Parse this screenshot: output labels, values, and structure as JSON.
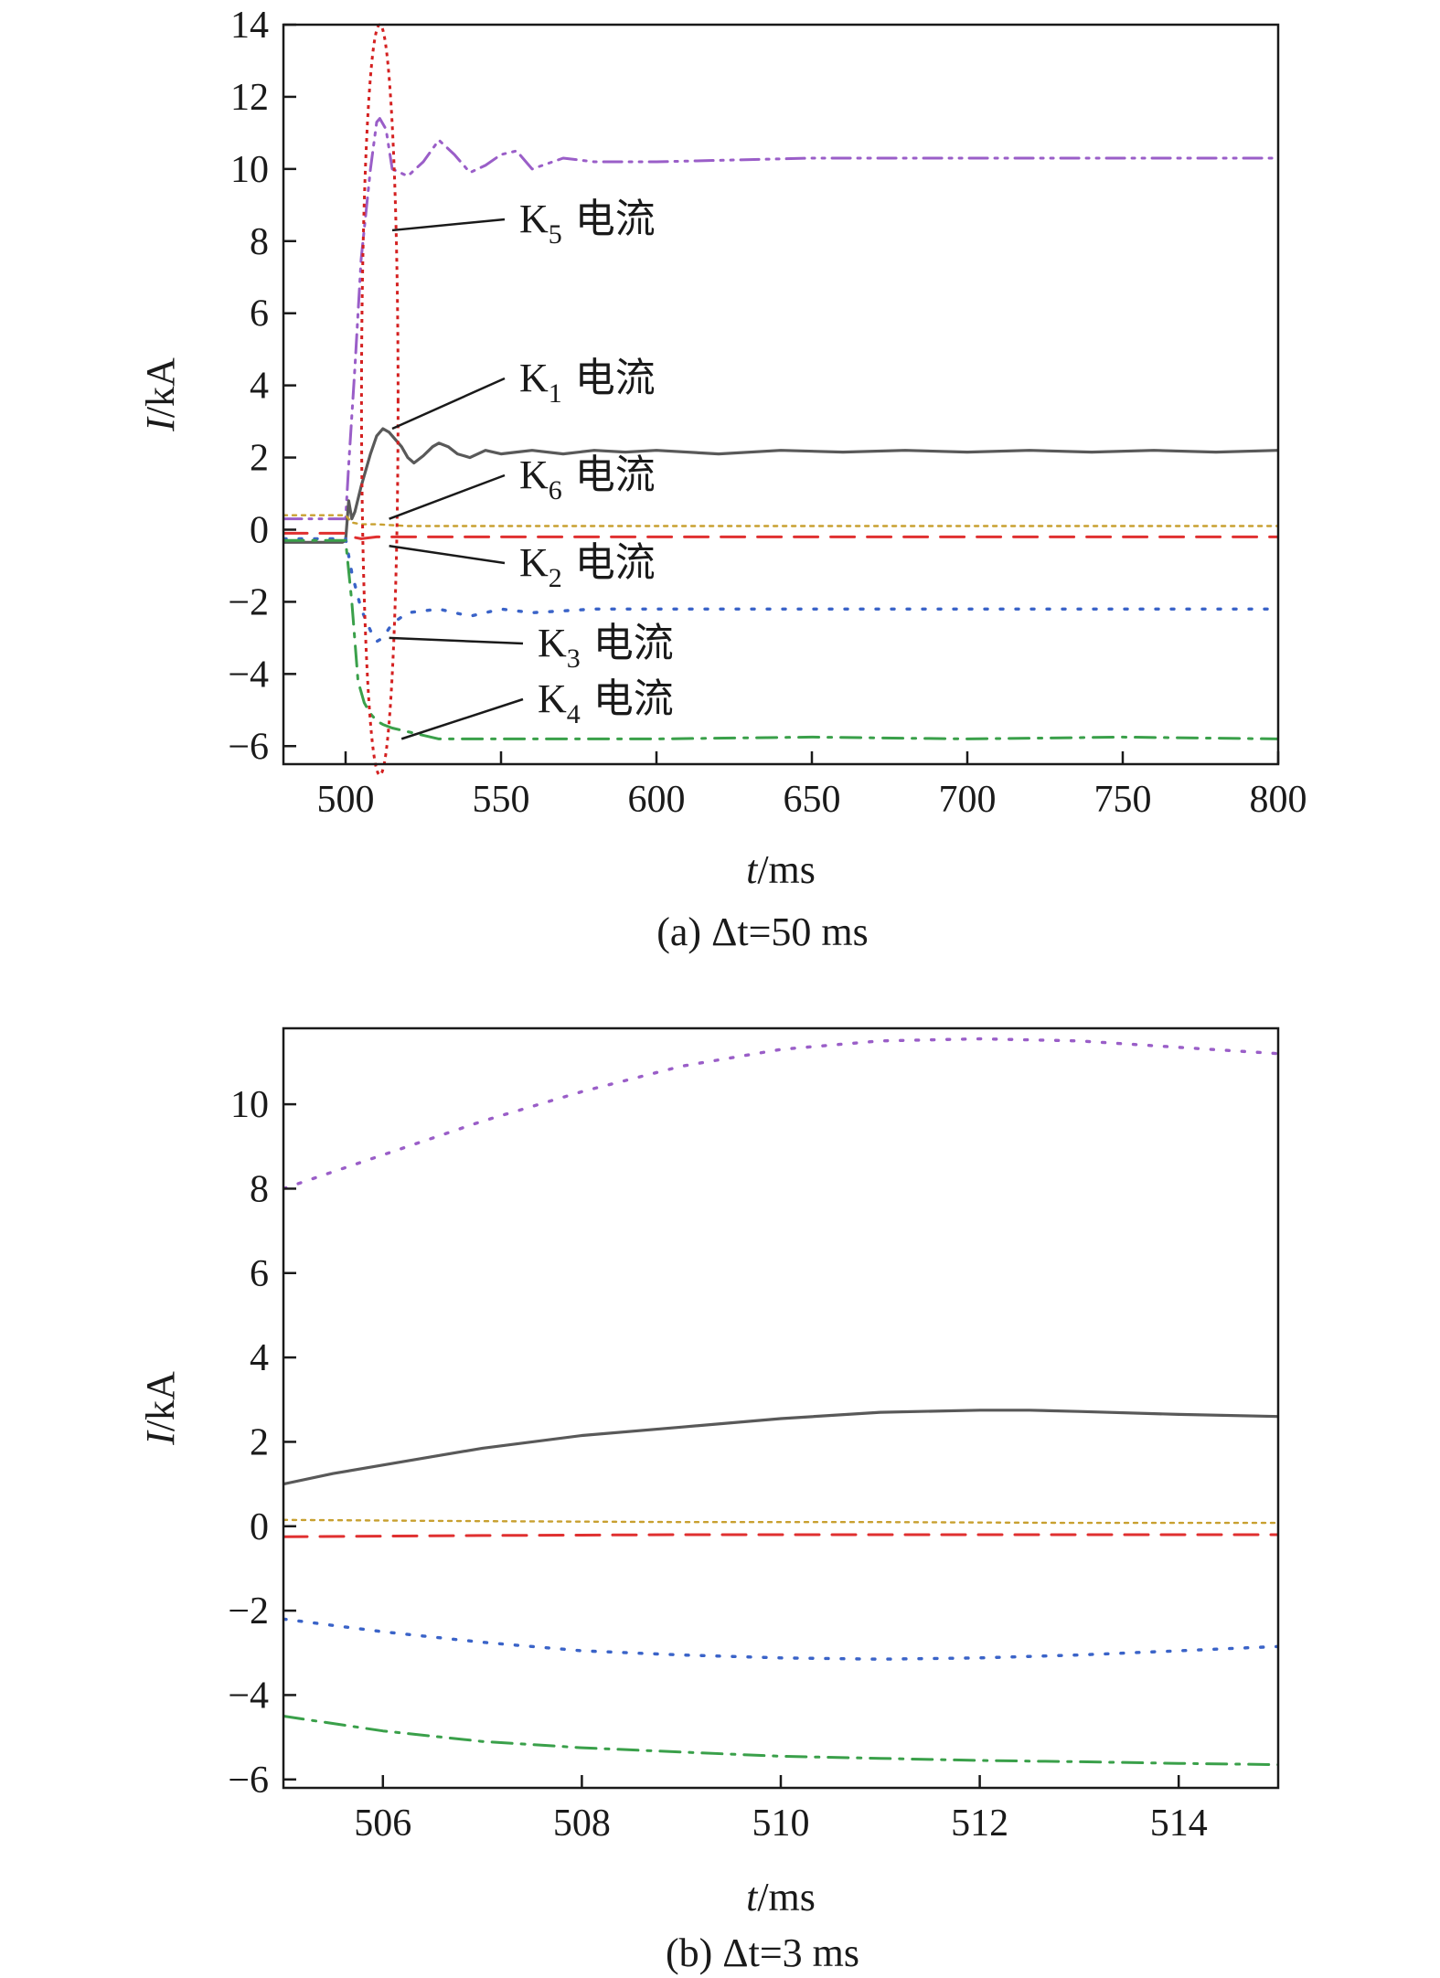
{
  "colors": {
    "K1": "#595959",
    "K2": "#e03030",
    "K3": "#3a63c8",
    "K4": "#3aa04a",
    "K5": "#9a5ec8",
    "K6": "#c8a030",
    "highlight": "#d42020"
  },
  "chart_data": [
    {
      "type": "line",
      "caption": "(a) Δt=50 ms",
      "xlabel_italic": "t",
      "xlabel_unit": "/ms",
      "ylabel_italic": "I",
      "ylabel_unit": "/kA",
      "xlim": [
        480,
        800
      ],
      "ylim": [
        -6.5,
        14
      ],
      "xticks": [
        500,
        550,
        600,
        650,
        700,
        750,
        800
      ],
      "yticks": [
        -6,
        -4,
        -2,
        0,
        2,
        4,
        6,
        8,
        10,
        12,
        14
      ],
      "grid": false,
      "annotation_text": "电流",
      "series": [
        {
          "id": "K5",
          "name": "K5",
          "sub": "5",
          "style": "dashdotdot",
          "x": [
            480,
            499,
            500,
            501,
            503,
            505,
            508,
            510,
            511,
            513,
            515,
            520,
            525,
            530,
            535,
            540,
            545,
            550,
            555,
            560,
            570,
            580,
            600,
            650,
            700,
            750,
            800
          ],
          "y": [
            0.3,
            0.3,
            0.3,
            1.8,
            4.5,
            7.5,
            10.0,
            11.3,
            11.4,
            11.1,
            10.0,
            9.8,
            10.2,
            10.8,
            10.4,
            9.9,
            10.1,
            10.4,
            10.5,
            10.0,
            10.3,
            10.2,
            10.2,
            10.3,
            10.3,
            10.3,
            10.3
          ]
        },
        {
          "id": "K1",
          "name": "K1",
          "sub": "1",
          "style": "solid",
          "x": [
            480,
            499,
            500,
            501,
            502,
            503,
            505,
            508,
            510,
            512,
            514,
            516,
            518,
            520,
            522,
            525,
            528,
            530,
            533,
            536,
            540,
            545,
            550,
            555,
            560,
            570,
            580,
            590,
            600,
            620,
            640,
            660,
            680,
            700,
            720,
            740,
            760,
            780,
            800
          ],
          "y": [
            -0.35,
            -0.35,
            -0.3,
            0.8,
            0.3,
            0.5,
            1.2,
            2.1,
            2.6,
            2.8,
            2.7,
            2.5,
            2.3,
            2.0,
            1.85,
            2.05,
            2.3,
            2.4,
            2.3,
            2.1,
            2.0,
            2.2,
            2.1,
            2.15,
            2.2,
            2.1,
            2.2,
            2.15,
            2.2,
            2.1,
            2.2,
            2.15,
            2.2,
            2.15,
            2.2,
            2.15,
            2.2,
            2.15,
            2.2
          ]
        },
        {
          "id": "K6",
          "name": "K6",
          "sub": "6",
          "style": "dotted-fine",
          "x": [
            480,
            500,
            502,
            505,
            510,
            520,
            600,
            700,
            800
          ],
          "y": [
            0.4,
            0.4,
            0.2,
            0.15,
            0.15,
            0.1,
            0.1,
            0.1,
            0.1
          ],
          "label_only": false
        },
        {
          "id": "K2",
          "name": "K2",
          "sub": "2",
          "style": "dashed",
          "x": [
            480,
            500,
            502,
            505,
            510,
            520,
            600,
            700,
            800
          ],
          "y": [
            -0.1,
            -0.1,
            -0.2,
            -0.25,
            -0.2,
            -0.2,
            -0.2,
            -0.2,
            -0.2
          ]
        },
        {
          "id": "K3",
          "name": "K3",
          "sub": "3",
          "style": "dotted",
          "x": [
            480,
            500,
            502,
            505,
            508,
            510,
            512,
            515,
            520,
            530,
            540,
            550,
            560,
            580,
            600,
            650,
            700,
            750,
            800
          ],
          "y": [
            -0.25,
            -0.25,
            -1.2,
            -2.2,
            -2.8,
            -3.1,
            -3.0,
            -2.6,
            -2.3,
            -2.2,
            -2.4,
            -2.2,
            -2.3,
            -2.2,
            -2.2,
            -2.2,
            -2.2,
            -2.2,
            -2.2
          ]
        },
        {
          "id": "K4",
          "name": "K4",
          "sub": "4",
          "style": "dashdot",
          "x": [
            480,
            500,
            502,
            504,
            506,
            508,
            510,
            512,
            515,
            520,
            530,
            550,
            600,
            650,
            700,
            750,
            800
          ],
          "y": [
            -0.3,
            -0.3,
            -2.0,
            -4.2,
            -4.8,
            -5.1,
            -5.3,
            -5.4,
            -5.5,
            -5.6,
            -5.8,
            -5.8,
            -5.8,
            -5.75,
            -5.8,
            -5.75,
            -5.8
          ]
        }
      ]
    },
    {
      "type": "line",
      "caption": "(b) Δt=3 ms",
      "xlabel_italic": "t",
      "xlabel_unit": "/ms",
      "ylabel_italic": "I",
      "ylabel_unit": "/kA",
      "xlim": [
        505,
        515
      ],
      "ylim": [
        -6.2,
        11.8
      ],
      "xticks": [
        506,
        508,
        510,
        512,
        514
      ],
      "yticks": [
        -6,
        -4,
        -2,
        0,
        2,
        4,
        6,
        8,
        10
      ],
      "grid": false,
      "series": [
        {
          "id": "K5",
          "style": "dotted",
          "x": [
            505,
            506,
            507,
            508,
            509,
            510,
            511,
            512,
            513,
            514,
            515
          ],
          "y": [
            8.0,
            8.8,
            9.6,
            10.3,
            10.9,
            11.3,
            11.5,
            11.55,
            11.5,
            11.35,
            11.2
          ]
        },
        {
          "id": "K1",
          "style": "solid",
          "x": [
            505,
            505.5,
            506,
            506.5,
            507,
            508,
            509,
            510,
            511,
            512,
            512.5,
            513,
            514,
            515
          ],
          "y": [
            1.0,
            1.25,
            1.45,
            1.65,
            1.85,
            2.15,
            2.35,
            2.55,
            2.7,
            2.75,
            2.75,
            2.72,
            2.65,
            2.6
          ]
        },
        {
          "id": "K6",
          "style": "dotted-fine",
          "x": [
            505,
            507,
            509,
            511,
            513,
            515
          ],
          "y": [
            0.15,
            0.12,
            0.1,
            0.1,
            0.08,
            0.08
          ]
        },
        {
          "id": "K2",
          "style": "dashed",
          "x": [
            505,
            507,
            509,
            511,
            513,
            515
          ],
          "y": [
            -0.25,
            -0.22,
            -0.2,
            -0.2,
            -0.2,
            -0.2
          ]
        },
        {
          "id": "K3",
          "style": "dotted",
          "x": [
            505,
            506,
            507,
            508,
            509,
            510,
            511,
            512,
            513,
            514,
            515
          ],
          "y": [
            -2.2,
            -2.5,
            -2.75,
            -2.95,
            -3.05,
            -3.12,
            -3.15,
            -3.12,
            -3.05,
            -2.95,
            -2.85
          ]
        },
        {
          "id": "K4",
          "style": "dashdot",
          "x": [
            505,
            506,
            507,
            508,
            509,
            510,
            511,
            512,
            513,
            514,
            515
          ],
          "y": [
            -4.5,
            -4.85,
            -5.1,
            -5.25,
            -5.35,
            -5.45,
            -5.5,
            -5.55,
            -5.58,
            -5.62,
            -5.65
          ]
        }
      ]
    }
  ]
}
